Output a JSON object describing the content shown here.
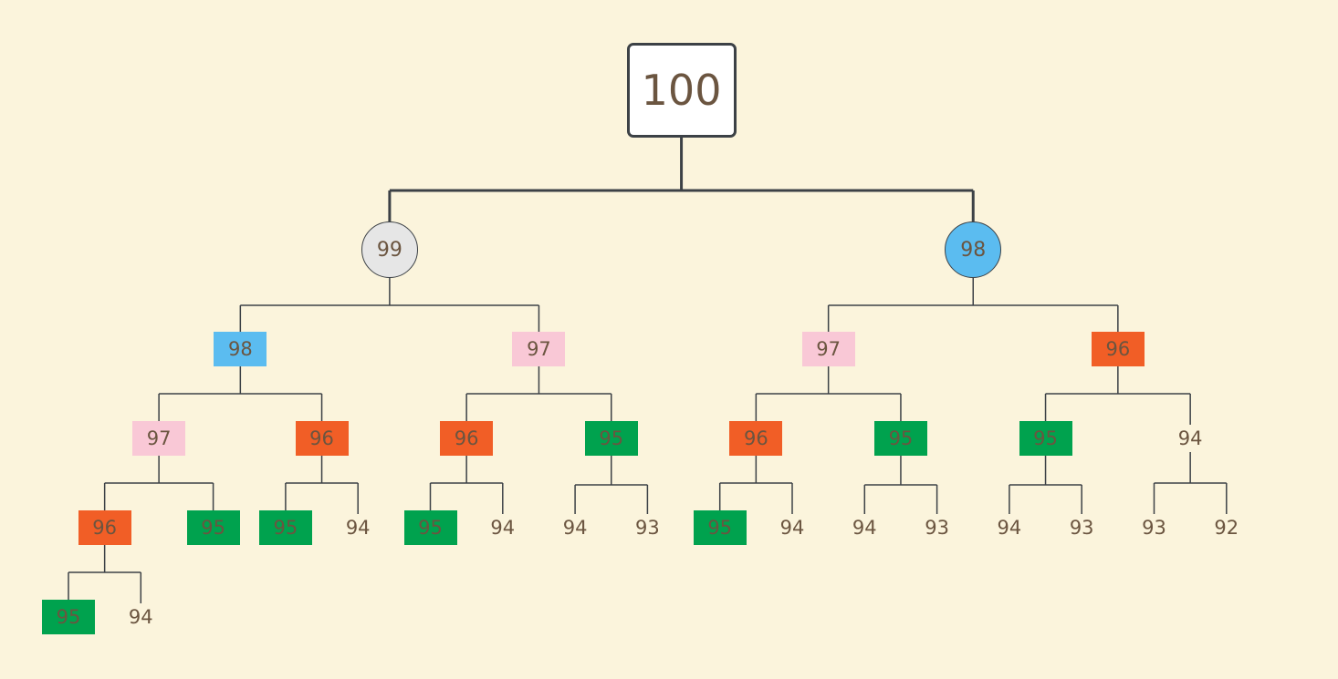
{
  "colors": {
    "background": "#fbf4dc",
    "line": "#3c4146",
    "text": "#6b5540",
    "gray": "#e6e6e6",
    "blue": "#5bbcf0",
    "pink": "#f9c8d6",
    "orange": "#f15e26",
    "green": "#00a24e",
    "white": "#ffffff"
  },
  "tree": {
    "value": "100",
    "shape": "root",
    "color": "white",
    "children": [
      {
        "value": "99",
        "shape": "circle",
        "color": "gray",
        "children": [
          {
            "value": "98",
            "shape": "box",
            "color": "blue",
            "children": [
              {
                "value": "97",
                "shape": "box",
                "color": "pink",
                "children": [
                  {
                    "value": "96",
                    "shape": "box",
                    "color": "orange",
                    "children": [
                      {
                        "value": "95",
                        "shape": "box",
                        "color": "green"
                      },
                      {
                        "value": "94",
                        "shape": "plain"
                      }
                    ]
                  },
                  {
                    "value": "95",
                    "shape": "box",
                    "color": "green"
                  }
                ]
              },
              {
                "value": "96",
                "shape": "box",
                "color": "orange",
                "children": [
                  {
                    "value": "95",
                    "shape": "box",
                    "color": "green"
                  },
                  {
                    "value": "94",
                    "shape": "plain"
                  }
                ]
              }
            ]
          },
          {
            "value": "97",
            "shape": "box",
            "color": "pink",
            "children": [
              {
                "value": "96",
                "shape": "box",
                "color": "orange",
                "children": [
                  {
                    "value": "95",
                    "shape": "box",
                    "color": "green"
                  },
                  {
                    "value": "94",
                    "shape": "plain"
                  }
                ]
              },
              {
                "value": "95",
                "shape": "box",
                "color": "green",
                "children": [
                  {
                    "value": "94",
                    "shape": "plain"
                  },
                  {
                    "value": "93",
                    "shape": "plain"
                  }
                ]
              }
            ]
          }
        ]
      },
      {
        "value": "98",
        "shape": "circle",
        "color": "blue",
        "children": [
          {
            "value": "97",
            "shape": "box",
            "color": "pink",
            "children": [
              {
                "value": "96",
                "shape": "box",
                "color": "orange",
                "children": [
                  {
                    "value": "95",
                    "shape": "box",
                    "color": "green"
                  },
                  {
                    "value": "94",
                    "shape": "plain"
                  }
                ]
              },
              {
                "value": "95",
                "shape": "box",
                "color": "green",
                "children": [
                  {
                    "value": "94",
                    "shape": "plain"
                  },
                  {
                    "value": "93",
                    "shape": "plain"
                  }
                ]
              }
            ]
          },
          {
            "value": "96",
            "shape": "box",
            "color": "orange",
            "children": [
              {
                "value": "95",
                "shape": "box",
                "color": "green",
                "children": [
                  {
                    "value": "94",
                    "shape": "plain"
                  },
                  {
                    "value": "93",
                    "shape": "plain"
                  }
                ]
              },
              {
                "value": "94",
                "shape": "plain",
                "children": [
                  {
                    "value": "93",
                    "shape": "plain"
                  },
                  {
                    "value": "92",
                    "shape": "plain"
                  }
                ]
              }
            ]
          }
        ]
      }
    ]
  }
}
